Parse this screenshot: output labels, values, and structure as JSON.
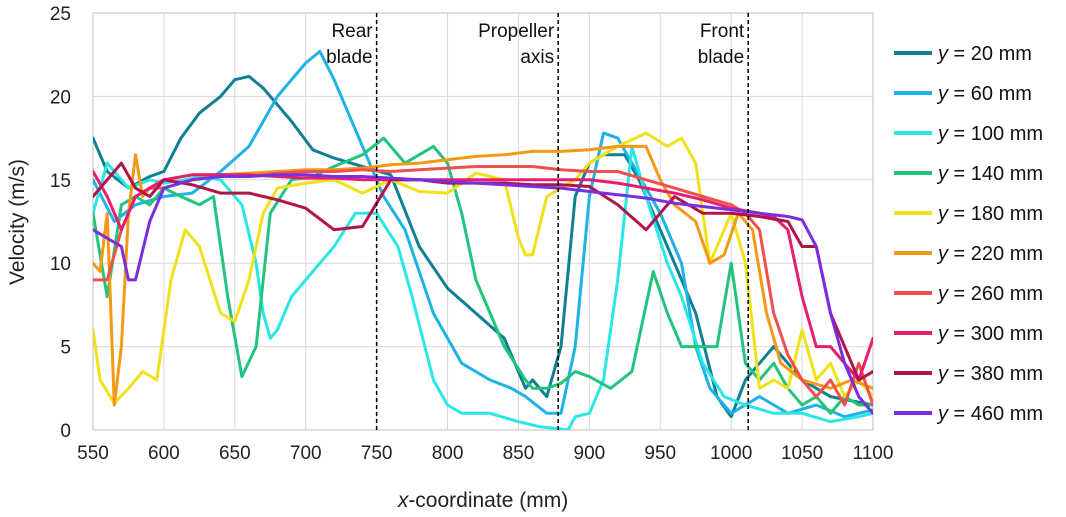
{
  "chart_data": {
    "type": "line",
    "title": "",
    "xlabel_italic": "x",
    "xlabel_rest": "-coordinate (mm)",
    "ylabel": "Velocity (m/s)",
    "xlim": [
      550,
      1100
    ],
    "ylim": [
      0,
      25
    ],
    "xticks": [
      550,
      600,
      650,
      700,
      750,
      800,
      850,
      900,
      950,
      1000,
      1050,
      1100
    ],
    "yticks": [
      0,
      5,
      10,
      15,
      20,
      25
    ],
    "grid": true,
    "legend_position": "right",
    "annotations": [
      {
        "x": 750,
        "lines": [
          "Rear",
          "blade"
        ]
      },
      {
        "x": 878,
        "lines": [
          "Propeller",
          "axis"
        ]
      },
      {
        "x": 1012,
        "lines": [
          "Front",
          "blade"
        ]
      }
    ],
    "series": [
      {
        "label_var": "y",
        "label_rest": " = 20 mm",
        "color": "#0f7f94",
        "x": [
          550,
          560,
          575,
          590,
          600,
          612,
          625,
          640,
          650,
          660,
          670,
          680,
          690,
          705,
          720,
          740,
          760,
          780,
          800,
          820,
          840,
          855,
          860,
          870,
          880,
          890,
          900,
          910,
          925,
          935,
          945,
          960,
          975,
          990,
          1000,
          1010,
          1020,
          1030,
          1050,
          1070,
          1100
        ],
        "y": [
          17.5,
          15.5,
          14.5,
          15.2,
          15.5,
          17.5,
          19,
          20,
          21,
          21.2,
          20.5,
          19.5,
          18.5,
          16.8,
          16.3,
          15.8,
          15.3,
          11,
          8.5,
          7,
          5.5,
          2.5,
          3,
          2,
          5,
          14,
          16,
          16.5,
          16.5,
          15,
          13,
          10,
          7,
          2,
          0.8,
          3,
          4,
          5,
          3,
          2,
          1.5
        ]
      },
      {
        "label_var": "y",
        "label_rest": " = 60 mm",
        "color": "#1fb2e6",
        "x": [
          550,
          565,
          580,
          600,
          620,
          640,
          660,
          680,
          700,
          710,
          720,
          740,
          755,
          770,
          790,
          810,
          830,
          845,
          855,
          870,
          880,
          890,
          900,
          910,
          920,
          930,
          950,
          965,
          975,
          985,
          1000,
          1020,
          1040,
          1060,
          1080,
          1100
        ],
        "y": [
          15,
          12.5,
          13.5,
          14,
          14.2,
          15.5,
          17,
          20,
          22,
          22.7,
          21,
          17,
          14,
          12,
          7,
          4,
          3,
          2.5,
          2,
          1,
          1,
          5,
          14,
          17.8,
          17.5,
          16,
          13,
          10,
          5,
          2.5,
          1,
          2,
          1,
          1.5,
          0.8,
          1.2
        ]
      },
      {
        "label_var": "y",
        "label_rest": " = 100 mm",
        "color": "#2ae6e6",
        "x": [
          550,
          560,
          575,
          590,
          600,
          615,
          625,
          640,
          655,
          665,
          670,
          675,
          680,
          690,
          705,
          720,
          735,
          750,
          765,
          775,
          790,
          800,
          810,
          830,
          850,
          865,
          875,
          885,
          890,
          900,
          910,
          920,
          930,
          940,
          955,
          965,
          980,
          995,
          1010,
          1030,
          1050,
          1070,
          1090,
          1100
        ],
        "y": [
          13,
          16,
          14.5,
          15,
          14.8,
          15,
          15.2,
          15,
          13.5,
          10,
          7,
          5.5,
          6,
          8,
          9.5,
          11,
          13,
          13,
          11,
          8,
          3,
          1.5,
          1,
          1,
          0.5,
          0.2,
          0.1,
          0,
          0.8,
          1,
          3,
          9,
          17,
          14,
          10,
          8,
          4,
          2,
          1.5,
          1,
          1,
          0.5,
          0.8,
          1
        ]
      },
      {
        "label_var": "y",
        "label_rest": " = 140 mm",
        "color": "#21c47c",
        "x": [
          550,
          560,
          570,
          580,
          590,
          600,
          612,
          625,
          635,
          645,
          655,
          665,
          675,
          690,
          705,
          720,
          740,
          755,
          770,
          780,
          790,
          800,
          810,
          820,
          840,
          855,
          860,
          870,
          880,
          890,
          900,
          915,
          930,
          945,
          955,
          965,
          975,
          990,
          1000,
          1010,
          1020,
          1030,
          1040,
          1050,
          1060,
          1070,
          1080,
          1090,
          1100
        ],
        "y": [
          13,
          8,
          13.5,
          14,
          13.5,
          14.5,
          14,
          13.5,
          14,
          8,
          3.2,
          5,
          13,
          15,
          15.2,
          15.8,
          16.5,
          17.5,
          16,
          16.5,
          17,
          16,
          13,
          9,
          5,
          3,
          2.5,
          2.5,
          2.8,
          3.5,
          3.2,
          2.5,
          3.5,
          9.5,
          7,
          5,
          5,
          5,
          10,
          4,
          3,
          4,
          2.5,
          1.5,
          2,
          1,
          2,
          1.5,
          1.5
        ]
      },
      {
        "label_var": "y",
        "label_rest": " = 180 mm",
        "color": "#f0e118",
        "x": [
          550,
          555,
          565,
          575,
          585,
          595,
          605,
          615,
          625,
          640,
          650,
          660,
          670,
          680,
          700,
          720,
          740,
          760,
          780,
          800,
          820,
          840,
          850,
          855,
          860,
          870,
          880,
          890,
          900,
          920,
          940,
          955,
          965,
          975,
          985,
          1000,
          1010,
          1020,
          1030,
          1040,
          1050,
          1060,
          1070,
          1080,
          1090,
          1100
        ],
        "y": [
          6,
          3,
          1.6,
          2.5,
          3.5,
          3,
          9,
          12,
          11,
          7,
          6.5,
          9,
          13,
          14.5,
          14.8,
          15,
          14.2,
          15,
          14.3,
          14.2,
          15.4,
          15,
          11.5,
          10.5,
          10.5,
          14,
          14.5,
          15,
          16,
          17,
          17.8,
          17,
          17.5,
          16,
          10,
          13,
          10,
          2.5,
          3,
          2.5,
          6,
          3,
          4,
          2,
          3,
          2
        ]
      },
      {
        "label_var": "y",
        "label_rest": " = 220 mm",
        "color": "#f39a14",
        "x": [
          550,
          555,
          560,
          565,
          570,
          575,
          580,
          585,
          590,
          600,
          620,
          640,
          660,
          680,
          700,
          720,
          740,
          760,
          780,
          800,
          820,
          840,
          860,
          880,
          900,
          920,
          940,
          950,
          960,
          975,
          985,
          995,
          1005,
          1015,
          1025,
          1035,
          1050,
          1070,
          1085,
          1100
        ],
        "y": [
          10,
          9.5,
          13,
          1.5,
          5,
          13,
          16.5,
          14,
          14.5,
          15,
          15.3,
          15.3,
          15.4,
          15.5,
          15.6,
          15.6,
          15.7,
          15.9,
          16,
          16.2,
          16.4,
          16.5,
          16.7,
          16.7,
          16.8,
          17,
          17,
          15,
          13.5,
          12.5,
          10,
          10.5,
          13,
          12,
          7,
          4,
          3,
          2.5,
          3,
          2.5
        ]
      },
      {
        "label_var": "y",
        "label_rest": " = 260 mm",
        "color": "#f0504c",
        "x": [
          550,
          560,
          570,
          580,
          590,
          600,
          620,
          640,
          660,
          680,
          700,
          720,
          740,
          760,
          780,
          800,
          820,
          840,
          860,
          880,
          900,
          920,
          940,
          960,
          980,
          1000,
          1010,
          1020,
          1030,
          1040,
          1050,
          1060,
          1070,
          1080,
          1090,
          1100
        ],
        "y": [
          9,
          9,
          12,
          14,
          14.5,
          14.5,
          15,
          15.2,
          15.2,
          15.4,
          15.5,
          15.5,
          15.6,
          15.5,
          15.6,
          15.7,
          15.8,
          15.8,
          15.8,
          15.6,
          15.5,
          15.5,
          15,
          14.5,
          14,
          13.5,
          13,
          12,
          7,
          4.5,
          3,
          2,
          3,
          1.5,
          4,
          1.5
        ]
      },
      {
        "label_var": "y",
        "label_rest": " = 300 mm",
        "color": "#e61e6e",
        "x": [
          550,
          560,
          570,
          580,
          590,
          600,
          620,
          640,
          660,
          680,
          700,
          720,
          740,
          760,
          780,
          800,
          820,
          840,
          860,
          880,
          900,
          920,
          940,
          960,
          980,
          1000,
          1020,
          1030,
          1040,
          1045,
          1050,
          1060,
          1070,
          1080,
          1090,
          1100
        ],
        "y": [
          15.5,
          14,
          12,
          14,
          14.5,
          15,
          15.3,
          15.3,
          15.3,
          15.2,
          15.1,
          15.1,
          15,
          15,
          15,
          15,
          15,
          15,
          15,
          15,
          15,
          14.8,
          14.5,
          14.2,
          13.8,
          13.3,
          13,
          12.8,
          12,
          10,
          8,
          5,
          5,
          4,
          3,
          5.5
        ]
      },
      {
        "label_var": "y",
        "label_rest": " = 380 mm",
        "color": "#b0144a",
        "x": [
          550,
          560,
          570,
          580,
          590,
          600,
          620,
          640,
          660,
          680,
          700,
          720,
          740,
          760,
          780,
          800,
          820,
          840,
          860,
          880,
          900,
          920,
          940,
          960,
          980,
          1000,
          1020,
          1040,
          1050,
          1060,
          1070,
          1080,
          1090,
          1100
        ],
        "y": [
          14,
          15,
          16,
          14.5,
          14,
          15,
          14.7,
          14.2,
          14.2,
          13.8,
          13.3,
          12,
          12.2,
          15,
          15,
          14.8,
          14.8,
          14.8,
          14.7,
          14.7,
          14.6,
          13.5,
          12,
          14,
          13,
          13,
          12.8,
          12.5,
          11,
          11,
          7,
          5,
          3,
          3.5
        ]
      },
      {
        "label_var": "y",
        "label_rest": " = 460 mm",
        "color": "#7a2ee0",
        "x": [
          550,
          560,
          570,
          575,
          580,
          590,
          600,
          620,
          640,
          660,
          680,
          700,
          720,
          740,
          760,
          780,
          800,
          820,
          840,
          860,
          880,
          900,
          920,
          940,
          960,
          980,
          1000,
          1020,
          1040,
          1050,
          1060,
          1070,
          1080,
          1090,
          1100
        ],
        "y": [
          12,
          11.5,
          11,
          9,
          9,
          12.5,
          14.5,
          15,
          15.2,
          15.2,
          15.3,
          15.3,
          15.2,
          15.2,
          15.1,
          15,
          14.9,
          14.8,
          14.7,
          14.6,
          14.5,
          14.3,
          14.1,
          13.9,
          13.6,
          13.4,
          13.2,
          13,
          12.8,
          12.6,
          11,
          7,
          4,
          2,
          1
        ]
      }
    ]
  }
}
